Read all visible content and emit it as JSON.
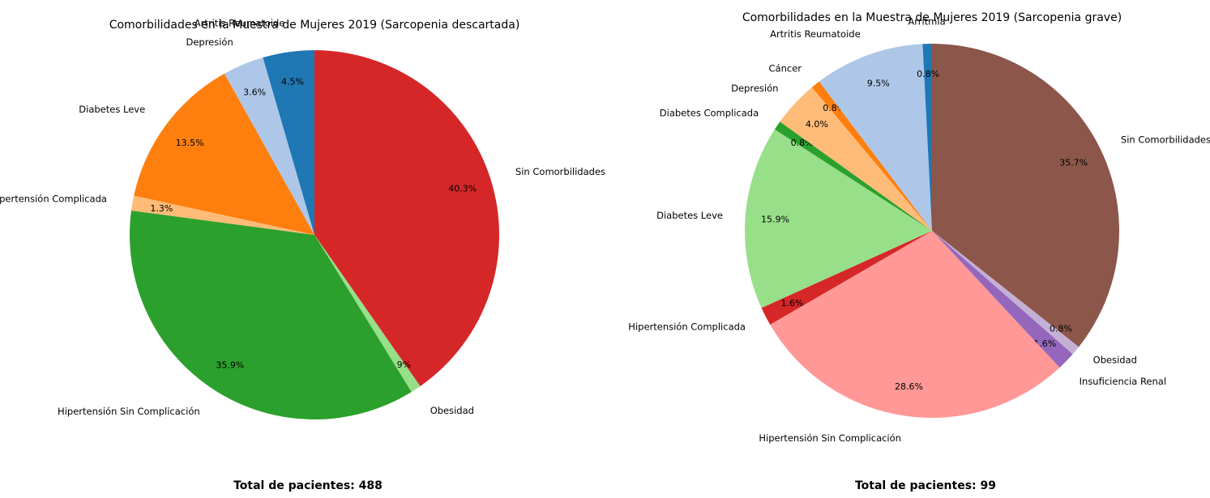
{
  "chart_data": [
    {
      "type": "pie",
      "title": "Comorbilidades en la Muestra de Mujeres 2019 (Sarcopenia descartada)",
      "footer": "Total de pacientes: 488",
      "slices": [
        {
          "label": "Sin Comorbilidades",
          "pct": 40.3,
          "pct_label": "40.3%",
          "color": "#d62728"
        },
        {
          "label": "Obesidad",
          "pct": 0.9,
          "pct_label": "0.9%",
          "color": "#98df8a"
        },
        {
          "label": "Hipertensión Sin Complicación",
          "pct": 35.9,
          "pct_label": "35.9%",
          "color": "#2ca02c"
        },
        {
          "label": "Hipertensión Complicada",
          "pct": 1.3,
          "pct_label": "1.3%",
          "color": "#ffbb78"
        },
        {
          "label": "Diabetes Leve",
          "pct": 13.5,
          "pct_label": "13.5%",
          "color": "#ff7f0e"
        },
        {
          "label": "Depresión",
          "pct": 3.6,
          "pct_label": "3.6%",
          "color": "#aec7e8"
        },
        {
          "label": "Artritis Reumatoide",
          "pct": 4.5,
          "pct_label": "4.5%",
          "color": "#1f77b4"
        }
      ]
    },
    {
      "type": "pie",
      "title": "Comorbilidades en la Muestra de Mujeres 2019 (Sarcopenia grave)",
      "footer": "Total de pacientes: 99",
      "slices": [
        {
          "label": "Sin Comorbilidades",
          "pct": 35.7,
          "pct_label": "35.7%",
          "color": "#8c564b"
        },
        {
          "label": "Obesidad",
          "pct": 0.8,
          "pct_label": "0.8%",
          "color": "#c5b0d5"
        },
        {
          "label": "Insuficiencia Renal",
          "pct": 1.6,
          "pct_label": "1.6%",
          "color": "#9467bd"
        },
        {
          "label": "Hipertensión Sin Complicación",
          "pct": 28.6,
          "pct_label": "28.6%",
          "color": "#ff9896"
        },
        {
          "label": "Hipertensión Complicada",
          "pct": 1.6,
          "pct_label": "1.6%",
          "color": "#d62728"
        },
        {
          "label": "Diabetes Leve",
          "pct": 15.9,
          "pct_label": "15.9%",
          "color": "#98df8a"
        },
        {
          "label": "Diabetes Complicada",
          "pct": 0.8,
          "pct_label": "0.8%",
          "color": "#2ca02c"
        },
        {
          "label": "Depresión",
          "pct": 4.0,
          "pct_label": "4.0%",
          "color": "#ffbb78"
        },
        {
          "label": "Cáncer",
          "pct": 0.8,
          "pct_label": "0.8%",
          "color": "#ff7f0e"
        },
        {
          "label": "Artritis Reumatoide",
          "pct": 9.5,
          "pct_label": "9.5%",
          "color": "#aec7e8"
        },
        {
          "label": "Arritmia",
          "pct": 0.8,
          "pct_label": "0.8%",
          "color": "#1f77b4"
        }
      ]
    }
  ]
}
